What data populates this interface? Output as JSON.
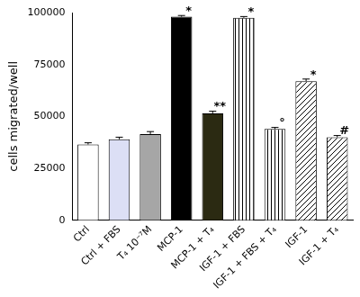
{
  "chart_data": {
    "type": "bar",
    "y_label": "cells migrated/well",
    "categories": [
      "Ctrl",
      "Ctrl + FBS",
      "T₄ 10⁻⁷M",
      "MCP-1",
      "MCP-1 + T₄",
      "IGF-1 + FBS",
      "IGF-1 + FBS + T₄",
      "IGF-1",
      "IGF-1 + T₄"
    ],
    "values": [
      36500,
      39000,
      41500,
      98000,
      51500,
      97500,
      44000,
      67000,
      40000
    ],
    "errors": [
      800,
      1000,
      1200,
      600,
      1000,
      600,
      700,
      1000,
      800
    ],
    "annotations": [
      null,
      null,
      null,
      "*",
      "**",
      "*",
      "°",
      "*",
      "#"
    ],
    "colors": [
      "#ffffff",
      "#dcdff5",
      "#a6a6a6",
      "#000000",
      "#2b2a12",
      "#ffffff",
      "#ffffff",
      "#ffffff",
      "#ffffff"
    ],
    "ylim": [
      0,
      100000
    ],
    "yticks": [
      0,
      25000,
      50000,
      75000,
      100000
    ],
    "grid": false
  }
}
